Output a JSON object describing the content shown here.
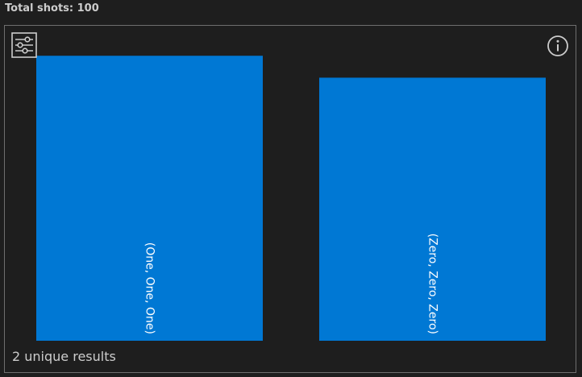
{
  "header": {
    "title": "Total shots: 100"
  },
  "panel": {
    "settings_icon": "sliders-icon",
    "info_icon": "info-icon",
    "footer": "2 unique results"
  },
  "colors": {
    "background": "#1e1e1e",
    "bar": "#0078d4",
    "bar_label": "#ffffff",
    "text": "#cccccc",
    "border": "#6f6f6f"
  },
  "chart_data": {
    "type": "bar",
    "categories": [
      "(One, One, One)",
      "(Zero, Zero, Zero)"
    ],
    "values": [
      52,
      48
    ],
    "total": 100,
    "title": "",
    "xlabel": "",
    "ylabel": "",
    "ylim": [
      0,
      56
    ],
    "grid": false,
    "legend": "none"
  }
}
